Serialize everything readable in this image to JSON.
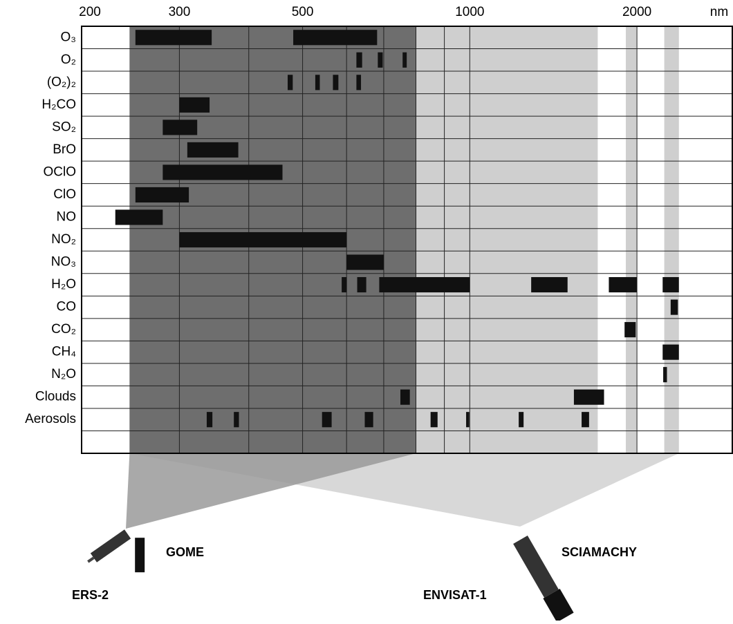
{
  "chart_data": {
    "type": "range",
    "xlim": [
      200,
      2970
    ],
    "log": true,
    "xticks": [
      200,
      300,
      500,
      1000,
      2000
    ],
    "x_unit": "nm",
    "xgrid": [
      300,
      400,
      500,
      600,
      700,
      800,
      900,
      1000,
      2000
    ],
    "bar_color": "#111111",
    "shaded_ranges": [
      {
        "range": [
          244,
          1700
        ],
        "color": "#cfcfcf"
      },
      {
        "range": [
          1910,
          2000
        ],
        "color": "#cfcfcf"
      },
      {
        "range": [
          2240,
          2380
        ],
        "color": "#cfcfcf"
      },
      {
        "range": [
          244,
          800
        ],
        "color": "#6e6e6e"
      }
    ],
    "categories": [
      "O₃",
      "O₂",
      "(O₂)₂",
      "H₂CO",
      "SO₂",
      "BrO",
      "OClO",
      "ClO",
      "NO",
      "NO₂",
      "NO₃",
      "H₂O",
      "CO",
      "CO₂",
      "CH₄",
      "N₂O",
      "Clouds",
      "Aerosols"
    ],
    "ranges": [
      [
        [
          250,
          343
        ],
        [
          481,
          681
        ]
      ],
      [
        [
          625,
          640
        ],
        [
          683,
          697
        ],
        [
          757,
          770
        ]
      ],
      [
        [
          470,
          480
        ],
        [
          527,
          537
        ],
        [
          567,
          580
        ],
        [
          625,
          637
        ]
      ],
      [
        [
          300,
          340
        ]
      ],
      [
        [
          280,
          323
        ]
      ],
      [
        [
          310,
          383
        ]
      ],
      [
        [
          280,
          460
        ]
      ],
      [
        [
          250,
          312
        ]
      ],
      [
        [
          230,
          280
        ]
      ],
      [
        [
          300,
          600
        ]
      ],
      [
        [
          600,
          700
        ]
      ],
      [
        [
          588,
          600
        ],
        [
          627,
          651
        ],
        [
          687,
          1000
        ],
        [
          1290,
          1500
        ],
        [
          1780,
          2000
        ],
        [
          2225,
          2380
        ]
      ],
      [
        [
          2300,
          2370
        ]
      ],
      [
        [
          1900,
          1990
        ]
      ],
      [
        [
          2225,
          2380
        ]
      ],
      [
        [
          2230,
          2265
        ]
      ],
      [
        [
          750,
          780
        ],
        [
          1540,
          1745
        ]
      ],
      [
        [
          336,
          344
        ],
        [
          376,
          384
        ],
        [
          542,
          564
        ],
        [
          647,
          670
        ],
        [
          850,
          875
        ],
        [
          985,
          998
        ],
        [
          1225,
          1250
        ],
        [
          1590,
          1640
        ]
      ]
    ],
    "instruments": [
      "GOME",
      "SCIAMACHY"
    ],
    "satellites": [
      "ERS-2",
      "ENVISAT-1"
    ]
  }
}
